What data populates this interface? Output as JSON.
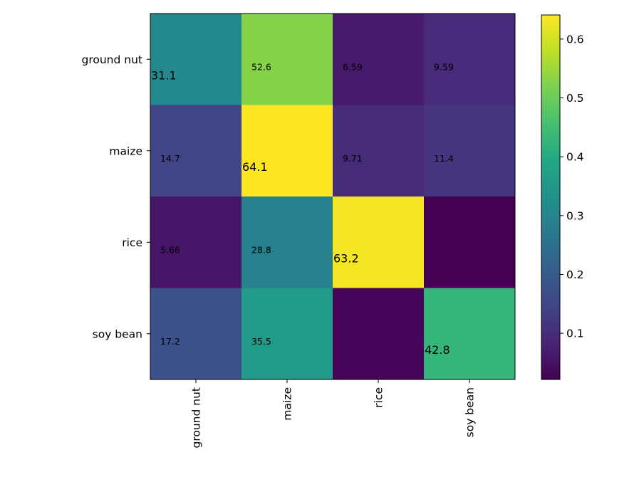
{
  "chart_data": {
    "type": "heatmap",
    "title": "",
    "xlabel": "",
    "ylabel": "",
    "row_labels": [
      "ground nut",
      "maize",
      "rice",
      "soy bean"
    ],
    "col_labels": [
      "ground nut",
      "maize",
      "rice",
      "soy bean"
    ],
    "values": [
      [
        0.311,
        0.526,
        0.0659,
        0.0959
      ],
      [
        0.147,
        0.641,
        0.0971,
        0.114
      ],
      [
        0.0566,
        0.288,
        0.632,
        0.0215
      ],
      [
        0.172,
        0.355,
        0.03,
        0.428
      ]
    ],
    "cell_labels": [
      [
        "31.1",
        "52.6",
        "6.59",
        "9.59"
      ],
      [
        "14.7",
        "64.1",
        "9.71",
        "11.4"
      ],
      [
        "5.66",
        "28.8",
        "63.2",
        ""
      ],
      [
        "17.2",
        "35.5",
        "",
        "42.8"
      ]
    ],
    "colorbar": {
      "vmin": 0.0215,
      "vmax": 0.641,
      "ticks": [
        0.1,
        0.2,
        0.3,
        0.4,
        0.5,
        0.6
      ],
      "tick_labels": [
        "0.1",
        "0.2",
        "0.3",
        "0.4",
        "0.5",
        "0.6"
      ]
    },
    "colormap": "viridis",
    "grid": false
  }
}
